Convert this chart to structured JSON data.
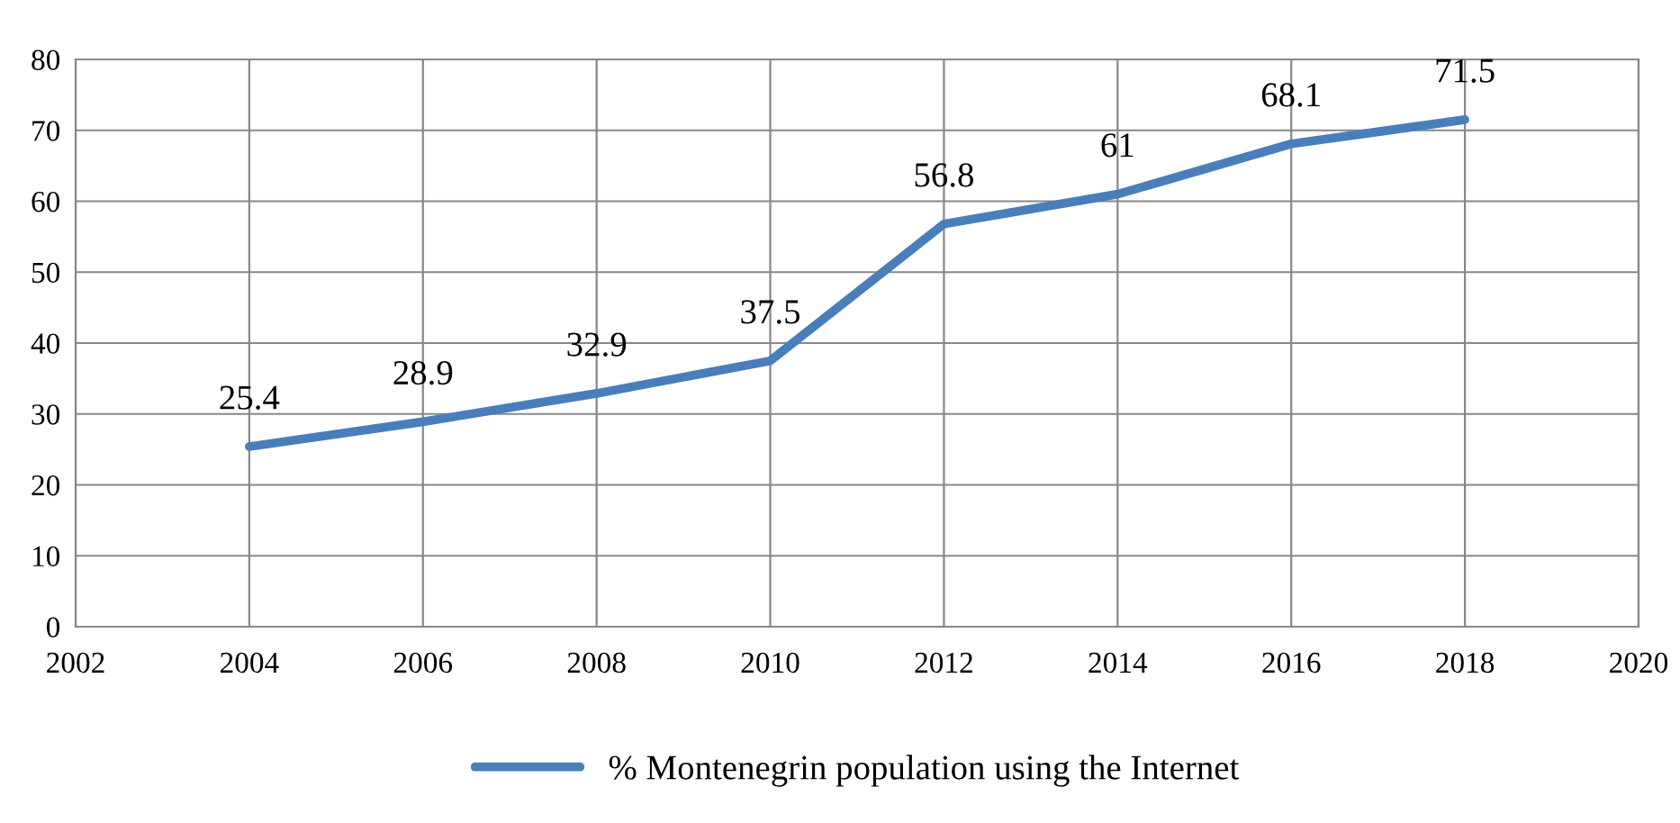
{
  "chart_data": {
    "type": "line",
    "x": [
      2004,
      2006,
      2008,
      2010,
      2012,
      2014,
      2016,
      2018
    ],
    "series": [
      {
        "name": "% Montenegrin population using the Internet",
        "color": "#4a7ebb",
        "values": [
          25.4,
          28.9,
          32.9,
          37.5,
          56.8,
          61,
          68.1,
          71.5
        ]
      }
    ],
    "xlim": [
      2002,
      2020
    ],
    "xticks": [
      2002,
      2004,
      2006,
      2008,
      2010,
      2012,
      2014,
      2016,
      2018,
      2020
    ],
    "ylim": [
      0,
      80
    ],
    "yticks": [
      0,
      10,
      20,
      30,
      40,
      50,
      60,
      70,
      80
    ],
    "grid": true,
    "legend": "bottom",
    "data_labels": true,
    "marker": "none",
    "line_style": "solid"
  }
}
